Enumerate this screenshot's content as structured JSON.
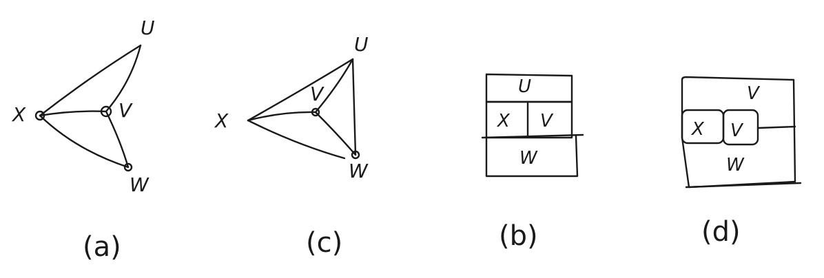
{
  "panels": {
    "a": {
      "caption": "(a)",
      "labels": {
        "u": "U",
        "v": "V",
        "w": "W",
        "x": "X"
      }
    },
    "c": {
      "caption": "(c)",
      "labels": {
        "u": "U",
        "v": "V",
        "w": "W",
        "x": "X"
      }
    },
    "b": {
      "caption": "(b)",
      "regions": {
        "u": "U",
        "x": "X",
        "v": "V",
        "w": "W"
      }
    },
    "d": {
      "caption": "(d)",
      "regions": {
        "u": "V",
        "x": "X",
        "v": "V",
        "w": "W"
      }
    }
  },
  "colors": {
    "ink": "#1a1a1a",
    "background": "#ffffff"
  }
}
